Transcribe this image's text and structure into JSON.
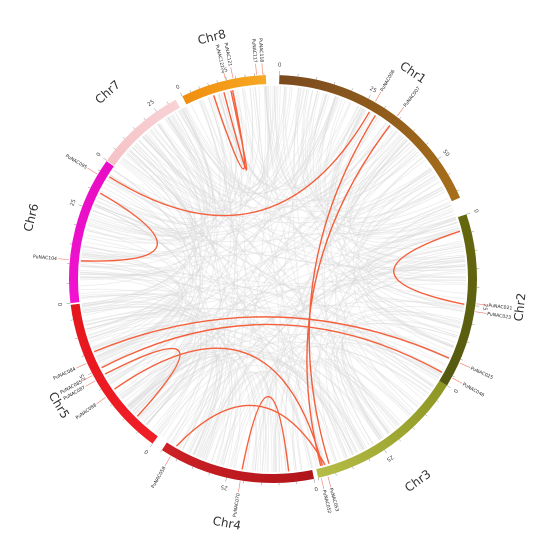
{
  "chart_data": {
    "type": "circos",
    "chromosomes": [
      {
        "name": "Chr1",
        "length": 62,
        "color": "#8b5a14",
        "gradient": [
          "#7a4a1e",
          "#a86f1a"
        ],
        "ticks": [
          0,
          25,
          50
        ]
      },
      {
        "name": "Chr2",
        "length": 48,
        "color": "#5f6312",
        "gradient": [
          "#66680f",
          "#55590f"
        ],
        "ticks": [
          0,
          25
        ]
      },
      {
        "name": "Chr3",
        "length": 45,
        "color": "#9fa62e",
        "gradient": [
          "#8e9623",
          "#b5bd47"
        ],
        "ticks": [
          0,
          25
        ]
      },
      {
        "name": "Chr4",
        "length": 45,
        "color": "#c2181d",
        "gradient": [
          "#b0151a",
          "#cc2025"
        ],
        "ticks": [
          0,
          25
        ]
      },
      {
        "name": "Chr5",
        "length": 44,
        "color": "#ee1c24",
        "gradient": [
          "#f01e26",
          "#e6161d"
        ],
        "ticks": [
          0,
          25
        ]
      },
      {
        "name": "Chr6",
        "length": 38,
        "color": "#ee10cc",
        "gradient": [
          "#f012cf",
          "#e80cc4"
        ],
        "ticks": [
          0,
          25
        ]
      },
      {
        "name": "Chr7",
        "length": 33,
        "color": "#f6c7cb",
        "gradient": [
          "#f5c2c6",
          "#f8d2d5"
        ],
        "ticks": [
          0,
          25
        ]
      },
      {
        "name": "Chr8",
        "length": 46,
        "color": "#f59a12",
        "gradient": [
          "#f08e0e",
          "#f7a824"
        ],
        "ticks": [
          0,
          25
        ]
      }
    ],
    "genes": [
      {
        "name": "PuNAC006",
        "chr": "Chr1",
        "pos": 27
      },
      {
        "name": "PuNAC007",
        "chr": "Chr1",
        "pos": 34
      },
      {
        "name": "PuNAC021",
        "chr": "Chr2",
        "pos": 25
      },
      {
        "name": "PuNAC023",
        "chr": "Chr2",
        "pos": 26
      },
      {
        "name": "PuNAC025",
        "chr": "Chr2",
        "pos": 41
      },
      {
        "name": "PuNAC046",
        "chr": "Chr2",
        "pos": 45.5
      },
      {
        "name": "PuNAC052",
        "chr": "Chr3",
        "pos": 43.5
      },
      {
        "name": "PuNAC053",
        "chr": "Chr3",
        "pos": 43
      },
      {
        "name": "PuNAC058",
        "chr": "Chr4",
        "pos": 42
      },
      {
        "name": "PuNAC070",
        "chr": "Chr4",
        "pos": 21
      },
      {
        "name": "PuNAC084",
        "chr": "Chr5",
        "pos": 27
      },
      {
        "name": "PuNAC085",
        "chr": "Chr5",
        "pos": 24
      },
      {
        "name": "PuNAC087",
        "chr": "Chr5",
        "pos": 23
      },
      {
        "name": "PuNAC088",
        "chr": "Chr5",
        "pos": 18
      },
      {
        "name": "PuNAC095",
        "chr": "Chr6",
        "pos": 34
      },
      {
        "name": "PuNAC104",
        "chr": "Chr6",
        "pos": 11
      },
      {
        "name": "PuNAC117",
        "chr": "Chr8",
        "pos": 42
      },
      {
        "name": "PuNAC118",
        "chr": "Chr8",
        "pos": 43.3
      },
      {
        "name": "PuNAC121",
        "chr": "Chr8",
        "pos": 27
      },
      {
        "name": "PuNAC122",
        "chr": "Chr8",
        "pos": 26
      }
    ],
    "links": [
      {
        "from": [
          "Chr1",
          34
        ],
        "to": [
          "Chr3",
          43.5
        ]
      },
      {
        "from": [
          "Chr1",
          29
        ],
        "to": [
          "Chr3",
          41
        ]
      },
      {
        "from": [
          "Chr1",
          27
        ],
        "to": [
          "Chr6",
          35
        ]
      },
      {
        "from": [
          "Chr2",
          25
        ],
        "to": [
          "Chr2",
          4
        ]
      },
      {
        "from": [
          "Chr2",
          41
        ],
        "to": [
          "Chr5",
          30
        ]
      },
      {
        "from": [
          "Chr2",
          45.5
        ],
        "to": [
          "Chr5",
          25
        ]
      },
      {
        "from": [
          "Chr3",
          43
        ],
        "to": [
          "Chr5",
          18
        ]
      },
      {
        "from": [
          "Chr4",
          42
        ],
        "to": [
          "Chr3",
          42.2
        ]
      },
      {
        "from": [
          "Chr4",
          21
        ],
        "to": [
          "Chr4",
          7
        ]
      },
      {
        "from": [
          "Chr5",
          23
        ],
        "to": [
          "Chr5",
          8
        ]
      },
      {
        "from": [
          "Chr6",
          11
        ],
        "to": [
          "Chr6",
          30
        ]
      },
      {
        "from": [
          "Chr8",
          26
        ],
        "to": [
          "Chr8",
          22
        ]
      },
      {
        "from": [
          "Chr8",
          27
        ],
        "to": [
          "Chr8",
          16
        ]
      }
    ],
    "colors": {
      "link": "#f4603c",
      "background_links": "#dcdcdc"
    }
  }
}
